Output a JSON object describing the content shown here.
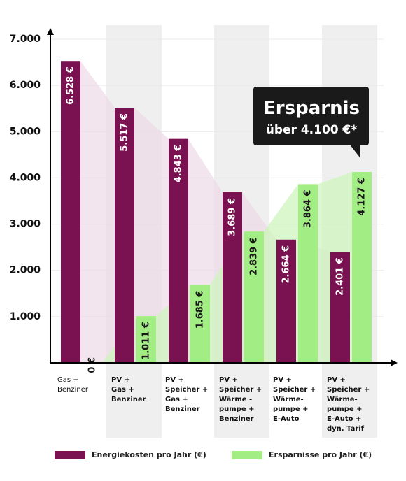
{
  "chart_data": {
    "type": "bar",
    "categories": [
      "Gas +\nBenziner",
      "PV +\nGas +\nBenziner",
      "PV +\nSpeicher +\nGas +\nBenziner",
      "PV +\nSpeicher +\nWärme -\npumpe +\nBenziner",
      "PV +\nSpeicher +\nWärme-\npumpe +\nE-Auto",
      "PV +\nSpeicher +\nWärme-\npumpe +\nE-Auto +\ndyn. Tarif"
    ],
    "series": [
      {
        "name": "Energiekosten pro Jahr (€)",
        "values": [
          6528,
          5517,
          4843,
          3689,
          2664,
          2401
        ],
        "labels": [
          "6.528 €",
          "5.517 €",
          "4.843 €",
          "3.689 €",
          "2.664 €",
          "2.401 €"
        ],
        "color": "#7a1150"
      },
      {
        "name": "Ersparnisse pro Jahr (€)",
        "values": [
          0,
          1011,
          1685,
          2839,
          3864,
          4127
        ],
        "labels": [
          "0 €",
          "1.011 €",
          "1.685 €",
          "2.839 €",
          "3.864 €",
          "4.127 €"
        ],
        "color": "#a3ee84"
      }
    ],
    "yticks": [
      1000,
      2000,
      3000,
      4000,
      5000,
      6000,
      7000
    ],
    "ytick_labels": [
      "1.000",
      "2.000",
      "3.000",
      "4.000",
      "5.000",
      "6.000",
      "7.000"
    ],
    "ylim": [
      0,
      7000
    ],
    "colors": {
      "band": "#efefef",
      "axis": "#000000",
      "callout": "#1a1a1a",
      "costs_area": "#ecd7e3",
      "savings_area": "#cdf4bd"
    },
    "callout": {
      "line1": "Ersparnis",
      "line2": "über 4.100 €*"
    }
  },
  "legend": {
    "items": [
      {
        "label": "Energiekosten pro Jahr (€)",
        "color": "#7a1150"
      },
      {
        "label": "Ersparnisse pro Jahr (€)",
        "color": "#a3ee84"
      }
    ]
  }
}
